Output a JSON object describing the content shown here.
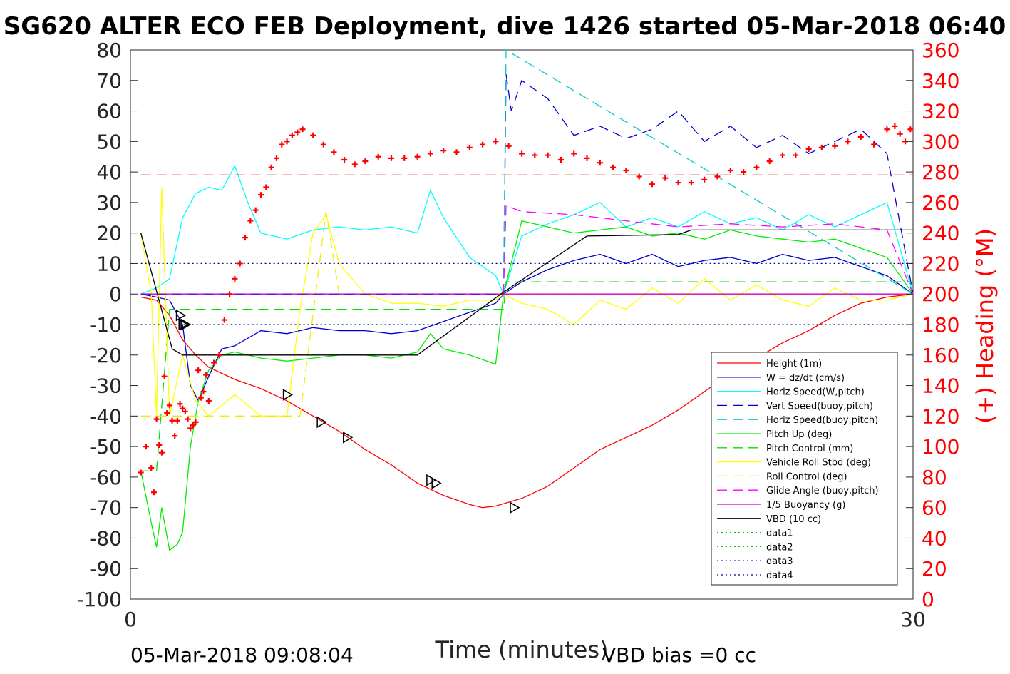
{
  "chart_data": {
    "type": "line",
    "title": "SG620 ALTER ECO FEB Deployment, dive 1426 started 05-Mar-2018 06:40",
    "xlabel": "Time (minutes)",
    "ylabel_right": "(+) Heading (°M)",
    "xlim": [
      0,
      30
    ],
    "ylim": [
      -100,
      80
    ],
    "ylim_right": [
      0,
      360
    ],
    "x_ticks": [
      0,
      30
    ],
    "y_ticks": [
      80,
      70,
      60,
      50,
      40,
      30,
      20,
      10,
      0,
      -10,
      -20,
      -30,
      -40,
      -50,
      -60,
      -70,
      -80,
      -90,
      -100
    ],
    "y_right_ticks": [
      360,
      340,
      320,
      300,
      280,
      260,
      240,
      220,
      200,
      180,
      160,
      140,
      120,
      100,
      80,
      60,
      40,
      20,
      0
    ],
    "footer_left": "05-Mar-2018 09:08:04",
    "footer_right": "VBD bias =0 cc",
    "legend_position": "lower-right",
    "series": [
      {
        "name": "Height (1m)",
        "color": "#ff0000",
        "style": "solid",
        "x": [
          0.4,
          1.0,
          1.5,
          2.0,
          2.5,
          3.0,
          3.5,
          4.0,
          5.0,
          6.0,
          7.0,
          8.0,
          9.0,
          10.0,
          11.0,
          12.0,
          13.0,
          13.5,
          14.0,
          15.0,
          16.0,
          17.0,
          18.0,
          19.0,
          20.0,
          21.0,
          22.0,
          23.0,
          24.0,
          25.0,
          26.0,
          27.0,
          28.0,
          29.0,
          30.0
        ],
        "y": [
          -1,
          -2,
          -7,
          -15,
          -20,
          -24,
          -26,
          -28,
          -31,
          -35,
          -40,
          -45,
          -51,
          -56,
          -62,
          -66,
          -69,
          -70,
          -69.5,
          -67,
          -63,
          -57,
          -51,
          -47,
          -43,
          -38,
          -32,
          -26,
          -21,
          -16,
          -12,
          -7,
          -3,
          -1,
          0
        ]
      },
      {
        "name": "W = dz/dt (cm/s)",
        "color": "#0000cc",
        "style": "solid",
        "x": [
          0.4,
          1.0,
          1.5,
          2.0,
          2.3,
          2.6,
          3.0,
          3.5,
          4.0,
          5.0,
          6.0,
          7.0,
          8.0,
          9.0,
          10.0,
          11.0,
          12.0,
          13.0,
          14.0,
          14.3,
          15.0,
          16.0,
          17.0,
          18.0,
          19.0,
          20.0,
          21.0,
          22.0,
          23.0,
          24.0,
          25.0,
          26.0,
          27.0,
          28.0,
          29.0,
          30.0
        ],
        "y": [
          0,
          -1,
          -2,
          -10,
          -30,
          -35,
          -27,
          -18,
          -17,
          -12,
          -13,
          -11,
          -12,
          -12,
          -13,
          -12,
          -9,
          -6,
          -3,
          0,
          4,
          8,
          11,
          13,
          10,
          13,
          9,
          11,
          12,
          10,
          13,
          11,
          12,
          9,
          6,
          0
        ]
      },
      {
        "name": "Horiz Speed(W,pitch)",
        "color": "#00ffff",
        "style": "solid",
        "x": [
          0.4,
          1.0,
          1.5,
          2.0,
          2.5,
          3.0,
          3.5,
          4.0,
          4.5,
          5.0,
          6.0,
          7.0,
          8.0,
          9.0,
          10.0,
          11.0,
          11.5,
          12.0,
          13.0,
          14.0,
          14.3,
          15.0,
          16.0,
          17.0,
          18.0,
          19.0,
          20.0,
          21.0,
          22.0,
          23.0,
          24.0,
          25.0,
          26.0,
          27.0,
          28.0,
          29.0,
          30.0
        ],
        "y": [
          0,
          2,
          5,
          25,
          33,
          35,
          34,
          42,
          30,
          20,
          18,
          21,
          22,
          21,
          22,
          20,
          34,
          25,
          12,
          6,
          0,
          19,
          23,
          26,
          30,
          22,
          25,
          22,
          27,
          23,
          25,
          21,
          26,
          22,
          26,
          30,
          0
        ]
      },
      {
        "name": "Vert Speed(buoy,pitch)",
        "color": "#0000cc",
        "style": "dashed",
        "x": [
          14.3,
          14.4,
          14.6,
          15.0,
          16.0,
          17.0,
          18.0,
          19.0,
          20.0,
          21.0,
          22.0,
          23.0,
          24.0,
          25.0,
          26.0,
          27.0,
          28.0,
          29.0,
          30.0
        ],
        "y": [
          0,
          72,
          60,
          70,
          64,
          52,
          55,
          51,
          54,
          60,
          50,
          55,
          48,
          52,
          46,
          50,
          54,
          46,
          0
        ]
      },
      {
        "name": "Horiz Speed(buoy,pitch)",
        "color": "#00cccc",
        "style": "dashed",
        "x": [
          14.3,
          14.4,
          30.0
        ],
        "y": [
          0,
          80,
          0
        ]
      },
      {
        "name": "Pitch Up (deg)",
        "color": "#00ee00",
        "style": "solid",
        "x": [
          0.4,
          0.8,
          1.0,
          1.2,
          1.5,
          1.8,
          2.0,
          2.3,
          2.6,
          3.0,
          3.5,
          4.0,
          5.0,
          6.0,
          7.0,
          8.0,
          9.0,
          10.0,
          11.0,
          11.5,
          12.0,
          13.0,
          14.0,
          14.3,
          15.0,
          16.0,
          17.0,
          18.0,
          19.0,
          20.0,
          21.0,
          22.0,
          23.0,
          24.0,
          25.0,
          26.0,
          27.0,
          28.0,
          29.0,
          30.0
        ],
        "y": [
          -58,
          -75,
          -83,
          -70,
          -84,
          -82,
          -78,
          -50,
          -35,
          -25,
          -20,
          -19,
          -21,
          -22,
          -21,
          -20,
          -20,
          -21,
          -19,
          -13,
          -18,
          -20,
          -23,
          0,
          24,
          22,
          20,
          21,
          22,
          19,
          20,
          18,
          21,
          19,
          18,
          17,
          18,
          15,
          12,
          0
        ]
      },
      {
        "name": "Pitch Control (mm)",
        "color": "#00dd00",
        "style": "dashed",
        "x": [
          0.4,
          1.0,
          1.5,
          2.0,
          14.3,
          14.4,
          30.0
        ],
        "y": [
          -58,
          -58,
          -5,
          -5,
          -5,
          4,
          4
        ]
      },
      {
        "name": "Vehicle Roll Stbd (deg)",
        "color": "#ffff00",
        "style": "solid",
        "x": [
          0.4,
          0.8,
          1.0,
          1.2,
          1.5,
          2.0,
          2.5,
          3.0,
          4.0,
          5.0,
          6.0,
          6.5,
          7.0,
          7.5,
          8.0,
          9.0,
          10.0,
          11.0,
          12.0,
          13.0,
          14.0,
          14.3,
          15.0,
          16.0,
          17.0,
          18.0,
          19.0,
          20.0,
          21.0,
          22.0,
          23.0,
          24.0,
          25.0,
          26.0,
          27.0,
          28.0,
          29.0,
          30.0
        ],
        "y": [
          20,
          0,
          -40,
          35,
          -40,
          -20,
          -35,
          -40,
          -33,
          -40,
          -40,
          -5,
          20,
          26,
          10,
          0,
          -3,
          -3,
          -4,
          -2,
          -2,
          0,
          -3,
          -5,
          -10,
          -2,
          -5,
          2,
          -3,
          5,
          -2,
          3,
          -2,
          -4,
          2,
          -2,
          -2,
          0
        ]
      },
      {
        "name": "Roll Control (deg)",
        "color": "#eeee00",
        "style": "dashed",
        "x": [
          0.4,
          1.5,
          6.0,
          6.5,
          7.5,
          8.0,
          30.0
        ],
        "y": [
          -40,
          -40,
          -40,
          -40,
          27,
          0,
          0
        ]
      },
      {
        "name": "Glide Angle (buoy,pitch)",
        "color": "#ff00ff",
        "style": "dashed",
        "x": [
          14.3,
          14.4,
          15.0,
          17.0,
          19.0,
          21.0,
          23.0,
          25.0,
          27.0,
          29.0,
          30.0
        ],
        "y": [
          0,
          29,
          27,
          26,
          24,
          22,
          23,
          22,
          23,
          21,
          0
        ]
      },
      {
        "name": "1/5 Buoyancy (g)",
        "color": "#cc00cc",
        "style": "solid",
        "x": [
          0.4,
          30.0
        ],
        "y": [
          0,
          0
        ]
      },
      {
        "name": "VBD (10 cc)",
        "color": "#000000",
        "style": "solid",
        "x": [
          0.4,
          1.6,
          2.0,
          11.0,
          14.2,
          17.5,
          21.0,
          21.5,
          30.0
        ],
        "y": [
          20,
          -18,
          -20,
          -20,
          0,
          19,
          19.5,
          21,
          21
        ]
      },
      {
        "name": "data1",
        "color": "#00cc00",
        "style": "dotted",
        "x": [],
        "y": []
      },
      {
        "name": "data2",
        "color": "#00cc00",
        "style": "dotted",
        "x": [],
        "y": []
      },
      {
        "name": "data3",
        "color": "#000099",
        "style": "dotted",
        "x": [
          0.4,
          30.0
        ],
        "y": [
          10,
          10
        ]
      },
      {
        "name": "data4",
        "color": "#000099",
        "style": "dotted",
        "x": [
          0.4,
          30.0
        ],
        "y": [
          -10,
          -10
        ]
      }
    ],
    "extra_series": [
      {
        "color": "#cc0000",
        "style": "dashed",
        "axis": "right",
        "x": [
          0.4,
          30.0
        ],
        "y": [
          278,
          278
        ]
      },
      {
        "color": "#7700cc",
        "style": "dashed",
        "axis": "left",
        "x": [
          0.4,
          14.3
        ],
        "y": [
          0,
          0
        ]
      },
      {
        "color": "#ff0000",
        "style": "markers-plus",
        "axis": "right",
        "x": [
          0.4,
          0.6,
          0.8,
          0.9,
          1.0,
          1.1,
          1.2,
          1.3,
          1.4,
          1.5,
          1.6,
          1.7,
          1.8,
          1.9,
          2.0,
          2.1,
          2.2,
          2.3,
          2.4,
          2.5,
          2.6,
          2.7,
          2.8,
          2.9,
          3.0,
          3.2,
          3.4,
          3.6,
          3.8,
          4.0,
          4.2,
          4.4,
          4.6,
          4.8,
          5.0,
          5.2,
          5.4,
          5.6,
          5.8,
          6.0,
          6.2,
          6.4,
          6.6,
          7.0,
          7.4,
          7.8,
          8.2,
          8.6,
          9.0,
          9.5,
          10.0,
          10.5,
          11.0,
          11.5,
          12.0,
          12.5,
          13.0,
          13.5,
          14.0,
          14.5,
          15.0,
          15.5,
          16.0,
          16.5,
          17.0,
          17.5,
          18.0,
          18.5,
          19.0,
          19.5,
          20.0,
          20.5,
          21.0,
          21.5,
          22.0,
          22.5,
          23.0,
          23.5,
          24.0,
          24.5,
          25.0,
          25.5,
          26.0,
          26.5,
          27.0,
          27.5,
          28.0,
          28.5,
          29.0,
          29.3,
          29.5,
          29.7,
          29.9
        ],
        "y": [
          83,
          100,
          86,
          70,
          118,
          101,
          96,
          146,
          122,
          127,
          117,
          107,
          117,
          128,
          125,
          123,
          118,
          112,
          114,
          116,
          150,
          132,
          136,
          147,
          130,
          155,
          160,
          183,
          200,
          210,
          220,
          237,
          248,
          255,
          265,
          270,
          283,
          289,
          298,
          300,
          304,
          306,
          308,
          304,
          298,
          293,
          288,
          285,
          287,
          290,
          289,
          289,
          290,
          292,
          294,
          293,
          296,
          298,
          300,
          297,
          292,
          291,
          291,
          288,
          292,
          289,
          286,
          283,
          281,
          277,
          272,
          276,
          273,
          273,
          275,
          277,
          281,
          280,
          283,
          287,
          291,
          291,
          295,
          296,
          297,
          300,
          303,
          298,
          308,
          310,
          305,
          300,
          308
        ]
      },
      {
        "color": "#000000",
        "style": "markers-triangle",
        "axis": "left",
        "x": [
          1.9,
          2.0,
          2.05,
          2.1,
          6.0,
          7.3,
          8.3,
          11.5,
          11.7,
          14.7
        ],
        "y": [
          -7,
          -10,
          -10,
          -10,
          -33,
          -42,
          -47,
          -61,
          -62,
          -70
        ]
      }
    ]
  }
}
